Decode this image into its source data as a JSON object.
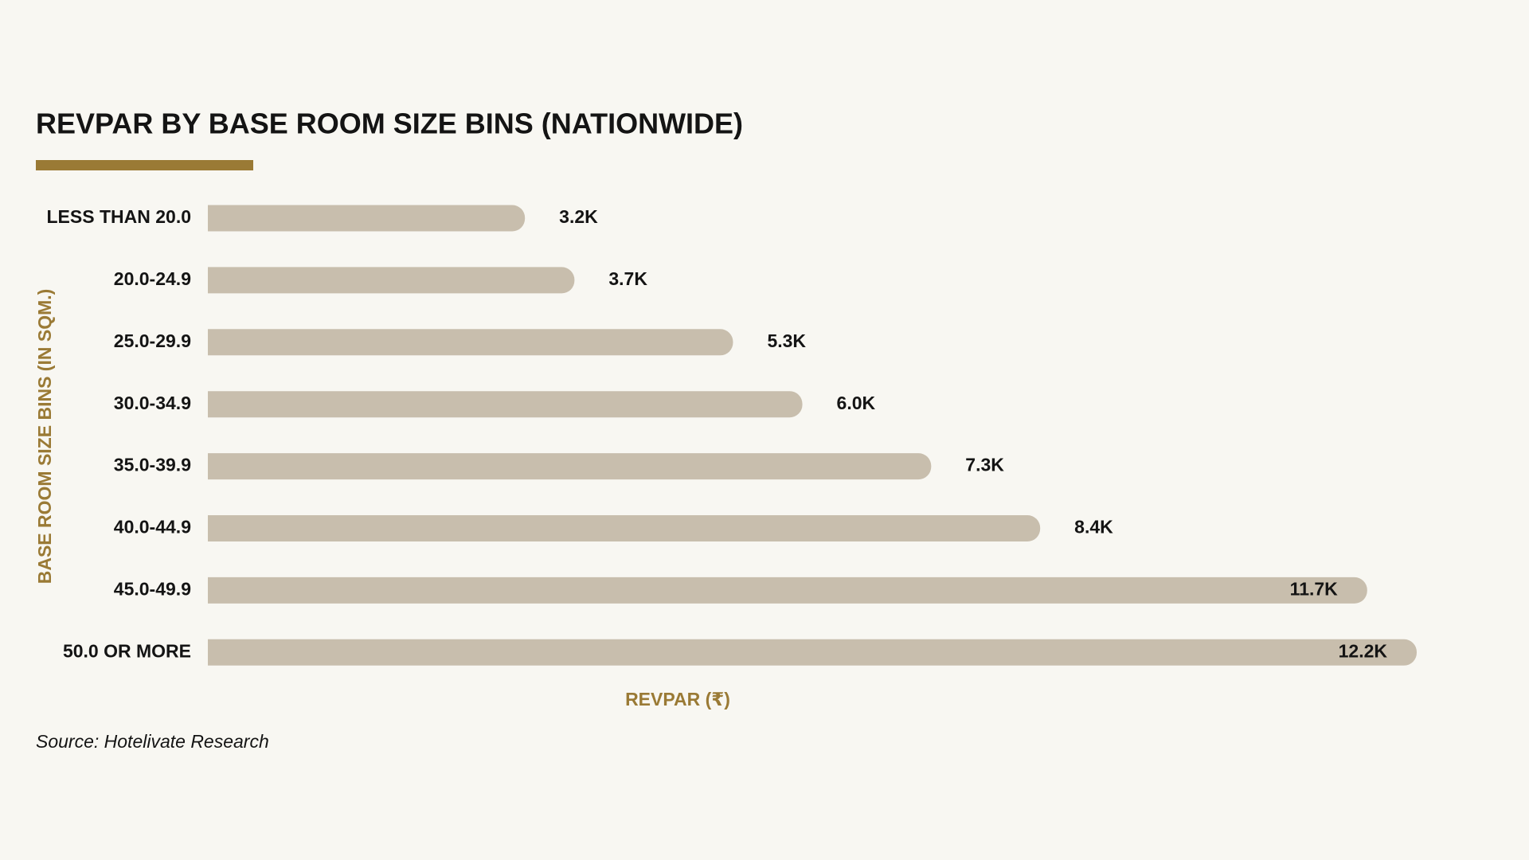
{
  "chart_data": {
    "type": "bar",
    "orientation": "horizontal",
    "title": "REVPAR BY BASE ROOM SIZE BINS (NATIONWIDE)",
    "y_label": "BASE ROOM SIZE BINS (IN SQM.)",
    "x_label": "REVPAR (₹)",
    "source": "Source: Hotelivate Research",
    "categories": [
      "LESS THAN 20.0",
      "20.0-24.9",
      "25.0-29.9",
      "30.0-34.9",
      "35.0-39.9",
      "40.0-44.9",
      "45.0-49.9",
      "50.0 OR MORE"
    ],
    "values": [
      3200,
      3700,
      5300,
      6000,
      7300,
      8400,
      11700,
      12200
    ],
    "value_labels": [
      "3.2K",
      "3.7K",
      "5.3K",
      "6.0K",
      "7.3K",
      "8.4K",
      "11.7K",
      "12.2K"
    ],
    "color": "#c8bead",
    "accent_color": "#9a7a35"
  }
}
